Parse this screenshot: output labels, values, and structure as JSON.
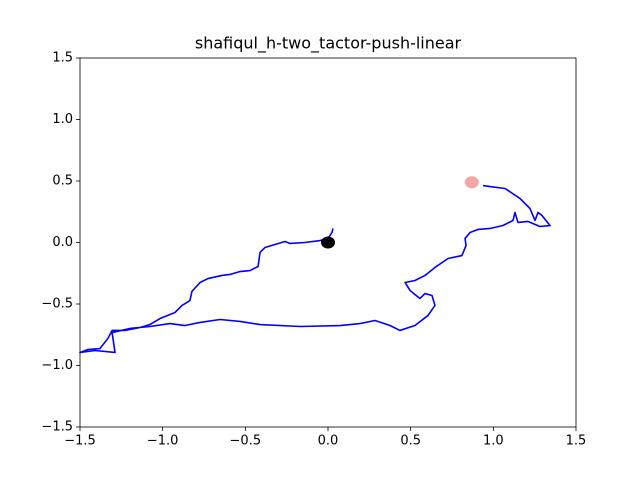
{
  "chart_data": {
    "type": "line",
    "title": "shafiqul_h-two_tactor-push-linear",
    "xlim": [
      -1.5,
      1.5
    ],
    "ylim": [
      -1.5,
      1.5
    ],
    "xticks": [
      {
        "value": -1.5,
        "label": "−1.5"
      },
      {
        "value": -1.0,
        "label": "−1.0"
      },
      {
        "value": -0.5,
        "label": "−0.5"
      },
      {
        "value": 0,
        "label": "0.0"
      },
      0.5,
      {
        "value": 1.0,
        "label": "1.0"
      },
      1.5
    ],
    "yticks": [
      {
        "value": -1.5,
        "label": "−1.5"
      },
      {
        "value": -1.0,
        "label": "−1.0"
      },
      {
        "value": -0.5,
        "label": "−0.5"
      },
      {
        "value": 0,
        "label": "0.0"
      },
      0.5,
      {
        "value": 1.0,
        "label": "1.0"
      },
      1.5
    ],
    "series": [
      {
        "color": "#0000ff",
        "x": [
          0.03,
          0.024,
          0,
          -0.048,
          -0.139,
          -0.23,
          -0.26,
          -0.321,
          -0.381,
          -0.411,
          -0.423,
          -0.472,
          -0.532,
          -0.593,
          -0.641,
          -0.726,
          -0.774,
          -0.823,
          -0.835,
          -0.883,
          -0.925,
          -1.016,
          -1.077,
          -1.137,
          -1.228,
          -1.306,
          -1.331,
          -1.379,
          -1.452,
          -1.5,
          -1.409,
          -1.288,
          -1.306,
          -1.198,
          -1.077,
          -0.956,
          -0.865,
          -0.774,
          -0.653,
          -0.532,
          -0.411,
          -0.169,
          0.073,
          0.194,
          0.284,
          0.375,
          0.435,
          0.526,
          0.605,
          0.647,
          0.629,
          0.587,
          0.556,
          0.496,
          0.466,
          0.526,
          0.587,
          0.647,
          0.726,
          0.81,
          0.835,
          0.829,
          0.859,
          0.907,
          0.98,
          1.058,
          1.119,
          1.131,
          1.149,
          1.21,
          1.282,
          1.343,
          1.294,
          1.27,
          1.252,
          1.222,
          1.161,
          1.071,
          0.98,
          0.938
        ],
        "values": [
          0.114,
          0.081,
          0.033,
          0.016,
          0,
          -0.008,
          0.008,
          -0.016,
          -0.041,
          -0.081,
          -0.195,
          -0.228,
          -0.236,
          -0.26,
          -0.268,
          -0.293,
          -0.325,
          -0.398,
          -0.472,
          -0.512,
          -0.569,
          -0.618,
          -0.667,
          -0.691,
          -0.715,
          -0.715,
          -0.78,
          -0.862,
          -0.87,
          -0.894,
          -0.878,
          -0.894,
          -0.732,
          -0.699,
          -0.683,
          -0.659,
          -0.675,
          -0.65,
          -0.626,
          -0.642,
          -0.667,
          -0.683,
          -0.675,
          -0.659,
          -0.634,
          -0.675,
          -0.715,
          -0.675,
          -0.593,
          -0.512,
          -0.431,
          -0.415,
          -0.455,
          -0.39,
          -0.325,
          -0.309,
          -0.268,
          -0.203,
          -0.13,
          -0.106,
          -0.024,
          0.033,
          0.081,
          0.106,
          0.114,
          0.138,
          0.179,
          0.244,
          0.163,
          0.171,
          0.13,
          0.138,
          0.22,
          0.244,
          0.179,
          0.276,
          0.358,
          0.439,
          0.455,
          0.463
        ]
      }
    ],
    "points": [
      {
        "x": 0,
        "y": 0,
        "color": "#000000"
      },
      {
        "x": 0.87,
        "y": 0.49,
        "color": "#f08080"
      }
    ]
  }
}
